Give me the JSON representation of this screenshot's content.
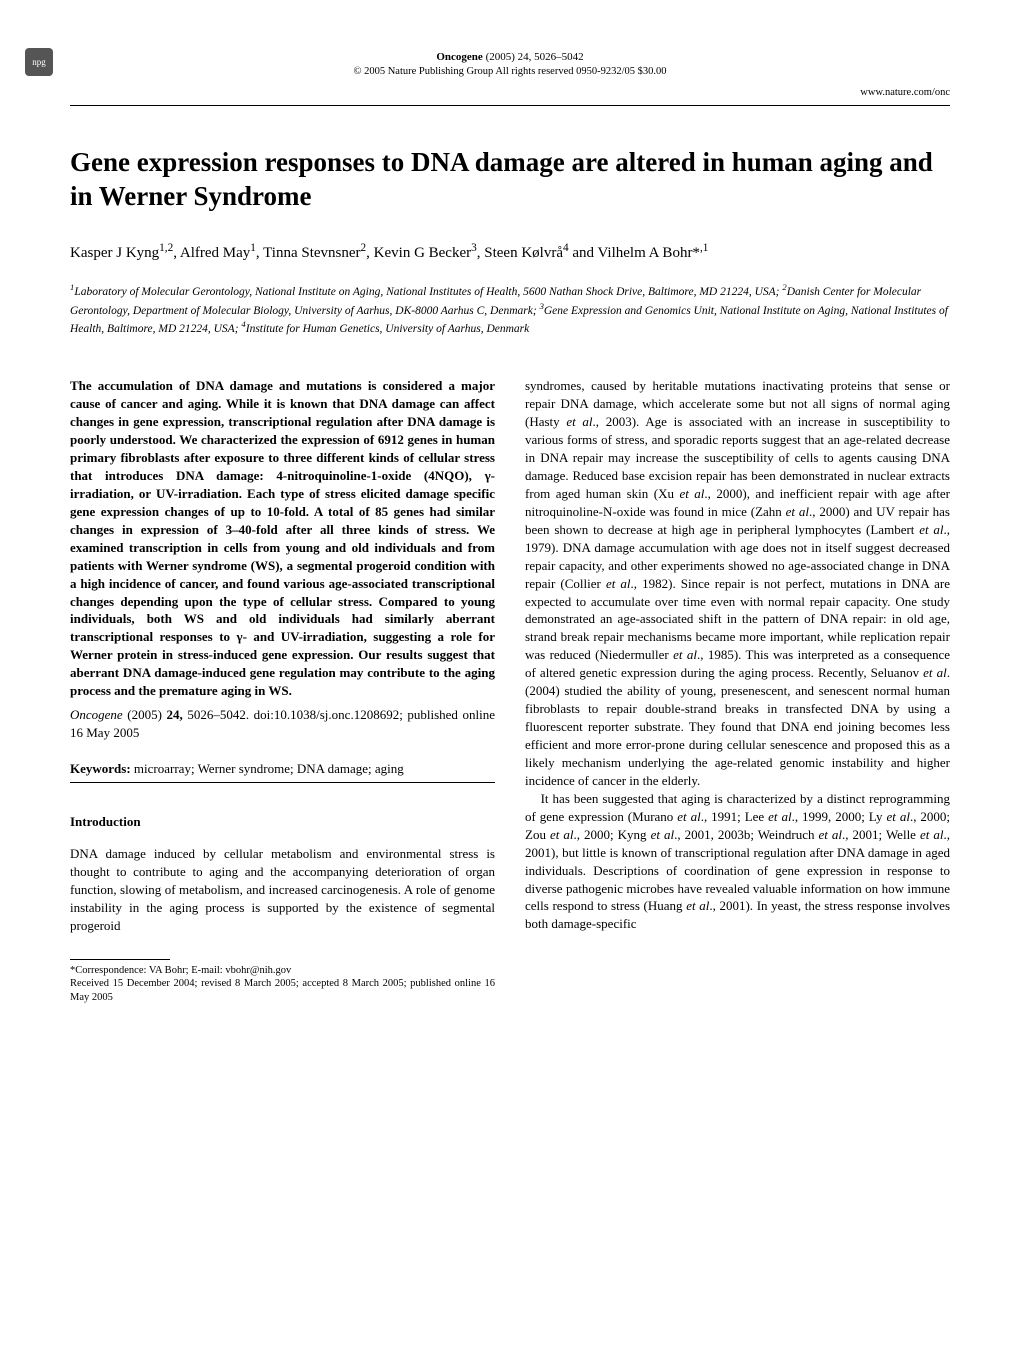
{
  "logo": "npg",
  "header": {
    "journal_name": "Oncogene",
    "journal_issue": "(2005) 24, 5026–5042",
    "copyright": "© 2005 Nature Publishing Group   All rights reserved 0950-9232/05 $30.00",
    "url": "www.nature.com/onc"
  },
  "title": "Gene expression responses to DNA damage are altered in human aging and in Werner Syndrome",
  "authors_html": "Kasper J Kyng<sup>1,2</sup>, Alfred May<sup>1</sup>, Tinna Stevnsner<sup>2</sup>, Kevin G Becker<sup>3</sup>, Steen Kølvrå<sup>4</sup> and Vilhelm A Bohr*<sup>,1</sup>",
  "affiliations_html": "<sup>1</sup>Laboratory of Molecular Gerontology, National Institute on Aging, National Institutes of Health, 5600 Nathan Shock Drive, Baltimore, MD 21224, USA; <sup>2</sup>Danish Center for Molecular Gerontology, Department of Molecular Biology, University of Aarhus, DK-8000 Aarhus C, Denmark; <sup>3</sup>Gene Expression and Genomics Unit, National Institute on Aging, National Institutes of Health, Baltimore, MD 21224, USA; <sup>4</sup>Institute for Human Genetics, University of Aarhus, Denmark",
  "abstract_html": "The accumulation of DNA damage and mutations is considered a major cause of cancer and aging. While it is known that DNA damage can affect changes in gene expression, transcriptional regulation after DNA damage is poorly understood. We characterized the expression of 6912 genes in human primary fibroblasts after exposure to three different kinds of cellular stress that introduces DNA damage: 4-nitroquinoline-1-oxide (4NQO), γ-irradiation, or UV-irradiation. Each type of stress elicited damage specific gene expression changes of up to 10-fold. A total of 85 genes had similar changes in expression of 3–40-fold after all three kinds of stress. We examined transcription in cells from young and old individuals and from patients with Werner syndrome (WS), a segmental progeroid condition with a high incidence of cancer, and found various age-associated transcriptional changes depending upon the type of cellular stress. Compared to young individuals, both WS and old individuals had similarly aberrant transcriptional responses to γ- and UV-irradiation, suggesting a role for Werner protein in stress-induced gene expression. Our results suggest that aberrant DNA damage-induced gene regulation may contribute to the aging process and the premature aging in WS.",
  "citation": {
    "journal": "Oncogene",
    "rest": " (2005) <b>24,</b> 5026–5042. doi:10.1038/sj.onc.1208692; published online 16 May 2005"
  },
  "keywords": {
    "label": "Keywords:",
    "text": " microarray; Werner syndrome; DNA damage; aging"
  },
  "intro_heading": "Introduction",
  "intro_left_html": "DNA damage induced by cellular metabolism and environmental stress is thought to contribute to aging and the accompanying deterioration of organ function, slowing of metabolism, and increased carcinogenesis. A role of genome instability in the aging process is supported by the existence of segmental progeroid",
  "footnote": {
    "correspondence": "*Correspondence: VA Bohr; E-mail: vbohr@nih.gov",
    "dates": "Received 15 December 2004; revised 8 March 2005; accepted 8 March 2005; published online 16 May 2005"
  },
  "right_col_p1_html": "syndromes, caused by heritable mutations inactivating proteins that sense or repair DNA damage, which accelerate some but not all signs of normal aging (Hasty <span class=\"ital\">et al</span>., 2003). Age is associated with an increase in susceptibility to various forms of stress, and sporadic reports suggest that an age-related decrease in DNA repair may increase the susceptibility of cells to agents causing DNA damage. Reduced base excision repair has been demonstrated in nuclear extracts from aged human skin (Xu <span class=\"ital\">et al</span>., 2000), and inefficient repair with age after nitroquinoline-N-oxide was found in mice (Zahn <span class=\"ital\">et al</span>., 2000) and UV repair has been shown to decrease at high age in peripheral lymphocytes (Lambert <span class=\"ital\">et al</span>., 1979). DNA damage accumulation with age does not in itself suggest decreased repair capacity, and other experiments showed no age-associated change in DNA repair (Collier <span class=\"ital\">et al</span>., 1982). Since repair is not perfect, mutations in DNA are expected to accumulate over time even with normal repair capacity. One study demonstrated an age-associated shift in the pattern of DNA repair: in old age, strand break repair mechanisms became more important, while replication repair was reduced (Niedermuller <span class=\"ital\">et al</span>., 1985). This was interpreted as a consequence of altered genetic expression during the aging process. Recently, Seluanov <span class=\"ital\">et al</span>. (2004) studied the ability of young, presenescent, and senescent normal human fibroblasts to repair double-strand breaks in transfected DNA by using a fluorescent reporter substrate. They found that DNA end joining becomes less efficient and more error-prone during cellular senescence and proposed this as a likely mechanism underlying the age-related genomic instability and higher incidence of cancer in the elderly.",
  "right_col_p2_html": "It has been suggested that aging is characterized by a distinct reprogramming of gene expression (Murano <span class=\"ital\">et al</span>., 1991; Lee <span class=\"ital\">et al</span>., 1999, 2000; Ly <span class=\"ital\">et al</span>., 2000; Zou <span class=\"ital\">et al</span>., 2000; Kyng <span class=\"ital\">et al</span>., 2001, 2003b; Weindruch <span class=\"ital\">et al</span>., 2001; Welle <span class=\"ital\">et al</span>., 2001), but little is known of transcriptional regulation after DNA damage in aged individuals. Descriptions of coordination of gene expression in response to diverse pathogenic microbes have revealed valuable information on how immune cells respond to stress (Huang <span class=\"ital\">et al</span>., 2001). In yeast, the stress response involves both damage-specific"
}
